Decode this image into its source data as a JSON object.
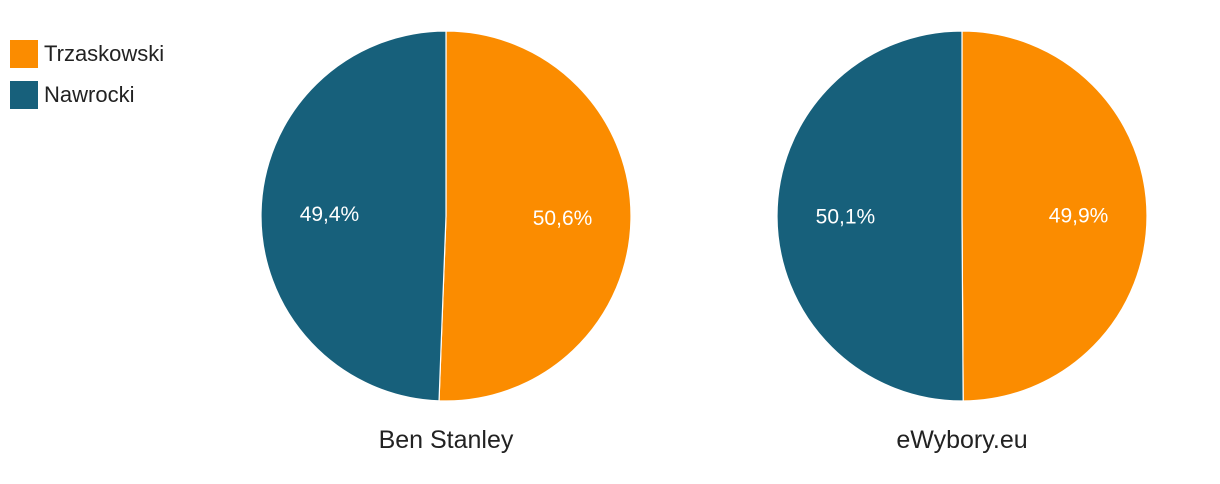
{
  "legend": [
    {
      "label": "Trzaskowski",
      "color": "#fb8c00"
    },
    {
      "label": "Nawrocki",
      "color": "#17607b"
    }
  ],
  "chart_data": [
    {
      "type": "pie",
      "title": "Ben Stanley",
      "slices": [
        {
          "name": "Trzaskowski",
          "value": 50.6,
          "label": "50,6%",
          "color": "#fb8c00"
        },
        {
          "name": "Nawrocki",
          "value": 49.4,
          "label": "49,4%",
          "color": "#17607b"
        }
      ]
    },
    {
      "type": "pie",
      "title": "eWybory.eu",
      "slices": [
        {
          "name": "Trzaskowski",
          "value": 49.9,
          "label": "49,9%",
          "color": "#fb8c00"
        },
        {
          "name": "Nawrocki",
          "value": 50.1,
          "label": "50,1%",
          "color": "#17607b"
        }
      ]
    }
  ]
}
